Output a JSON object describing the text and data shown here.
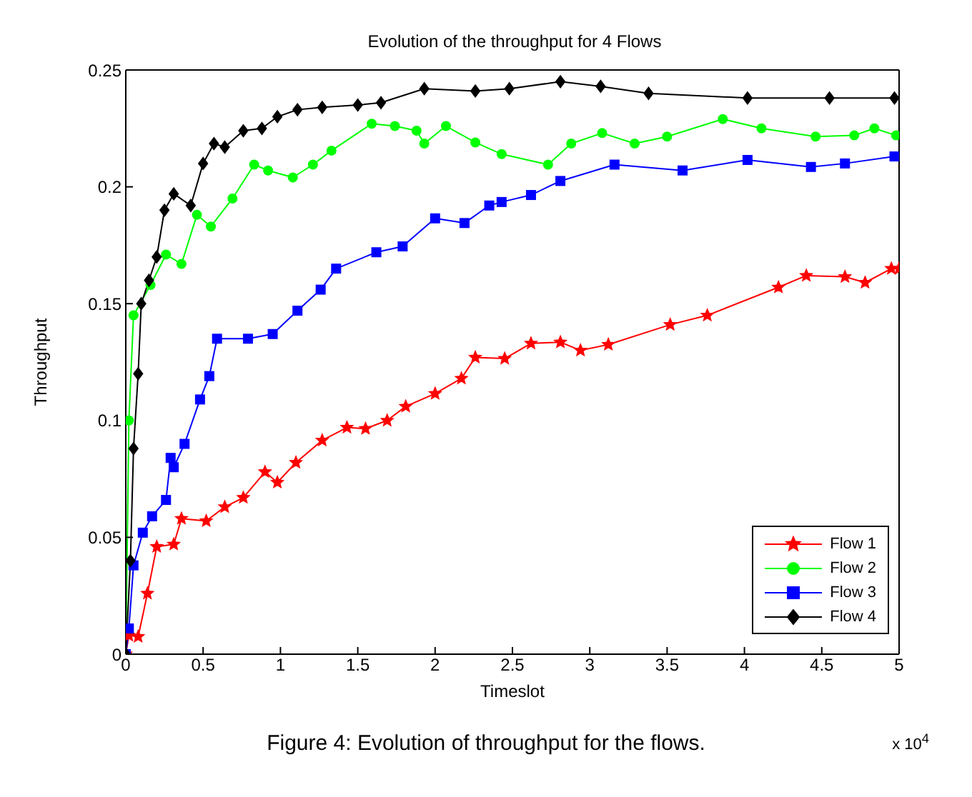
{
  "chart_data": {
    "type": "line",
    "title": "Evolution of the throughput for 4 Flows",
    "xlabel": "Timeslot",
    "ylabel": "Throughput",
    "xlim": [
      0,
      5
    ],
    "xticks": [
      0,
      0.5,
      1,
      1.5,
      2,
      2.5,
      3,
      3.5,
      4,
      4.5,
      5
    ],
    "ylim": [
      0,
      0.25
    ],
    "yticks": [
      0,
      0.05,
      0.1,
      0.15,
      0.2,
      0.25
    ],
    "grid": false,
    "legend": "bottom right",
    "line_style": "solid",
    "annotations": [
      "x 10$^{4}$",
      "Figure 4: Evolution of throughput for the flows."
    ],
    "series": [
      {
        "name": "Flow 1",
        "color": "#ff0000",
        "marker": "star",
        "x": [
          0,
          0.02,
          0.08,
          0.14,
          0.2,
          0.31,
          0.36,
          0.52,
          0.64,
          0.76,
          0.9,
          0.98,
          1.1,
          1.27,
          1.43,
          1.55,
          1.69,
          1.81,
          2.0,
          2.17,
          2.26,
          2.45,
          2.62,
          2.81,
          2.94,
          3.12,
          3.52,
          3.76,
          4.22,
          4.4,
          4.65,
          4.78,
          4.95,
          5.0
        ],
        "values": [
          0,
          0.008,
          0.0075,
          0.026,
          0.046,
          0.047,
          0.058,
          0.057,
          0.063,
          0.067,
          0.078,
          0.0735,
          0.082,
          0.0915,
          0.097,
          0.0965,
          0.1,
          0.106,
          0.1115,
          0.118,
          0.127,
          0.1265,
          0.133,
          0.1335,
          0.13,
          0.1325,
          0.141,
          0.145,
          0.157,
          0.162,
          0.1615,
          0.159,
          0.165,
          0.165
        ]
      },
      {
        "name": "Flow 2",
        "color": "#00ff00",
        "marker": "circle",
        "x": [
          0,
          0.02,
          0.05,
          0.16,
          0.26,
          0.36,
          0.46,
          0.55,
          0.69,
          0.83,
          0.92,
          1.08,
          1.21,
          1.33,
          1.59,
          1.74,
          1.88,
          1.93,
          2.07,
          2.26,
          2.43,
          2.73,
          2.88,
          3.08,
          3.29,
          3.5,
          3.86,
          4.11,
          4.46,
          4.71,
          4.84,
          4.98
        ],
        "values": [
          0,
          0.1,
          0.145,
          0.158,
          0.171,
          0.167,
          0.188,
          0.183,
          0.195,
          0.2095,
          0.207,
          0.204,
          0.2095,
          0.2155,
          0.227,
          0.226,
          0.224,
          0.2185,
          0.226,
          0.219,
          0.214,
          0.2095,
          0.2185,
          0.223,
          0.2185,
          0.2215,
          0.229,
          0.225,
          0.2215,
          0.222,
          0.225,
          0.222
        ]
      },
      {
        "name": "Flow 3",
        "color": "#0000ff",
        "marker": "square",
        "x": [
          0,
          0.02,
          0.05,
          0.11,
          0.17,
          0.26,
          0.29,
          0.31,
          0.38,
          0.48,
          0.54,
          0.59,
          0.79,
          0.95,
          1.11,
          1.26,
          1.36,
          1.62,
          1.79,
          2.0,
          2.19,
          2.35,
          2.43,
          2.62,
          2.81,
          3.16,
          3.6,
          4.02,
          4.43,
          4.65,
          4.97
        ],
        "values": [
          0,
          0.011,
          0.038,
          0.052,
          0.059,
          0.066,
          0.084,
          0.08,
          0.09,
          0.109,
          0.119,
          0.135,
          0.135,
          0.137,
          0.147,
          0.156,
          0.165,
          0.172,
          0.1745,
          0.1865,
          0.1845,
          0.192,
          0.1935,
          0.1965,
          0.2025,
          0.2095,
          0.207,
          0.2115,
          0.2085,
          0.21,
          0.213
        ]
      },
      {
        "name": "Flow 4",
        "color": "#000000",
        "marker": "diamond",
        "x": [
          0,
          0.03,
          0.05,
          0.08,
          0.1,
          0.15,
          0.2,
          0.25,
          0.31,
          0.42,
          0.5,
          0.57,
          0.64,
          0.76,
          0.88,
          0.98,
          1.11,
          1.27,
          1.5,
          1.65,
          1.93,
          2.26,
          2.48,
          2.81,
          3.07,
          3.38,
          4.02,
          4.55,
          4.97
        ],
        "values": [
          0,
          0.04,
          0.088,
          0.12,
          0.15,
          0.16,
          0.17,
          0.19,
          0.197,
          0.192,
          0.21,
          0.2185,
          0.217,
          0.224,
          0.225,
          0.23,
          0.233,
          0.234,
          0.235,
          0.236,
          0.242,
          0.241,
          0.242,
          0.245,
          0.243,
          0.24,
          0.238,
          0.238,
          0.238
        ]
      }
    ]
  }
}
